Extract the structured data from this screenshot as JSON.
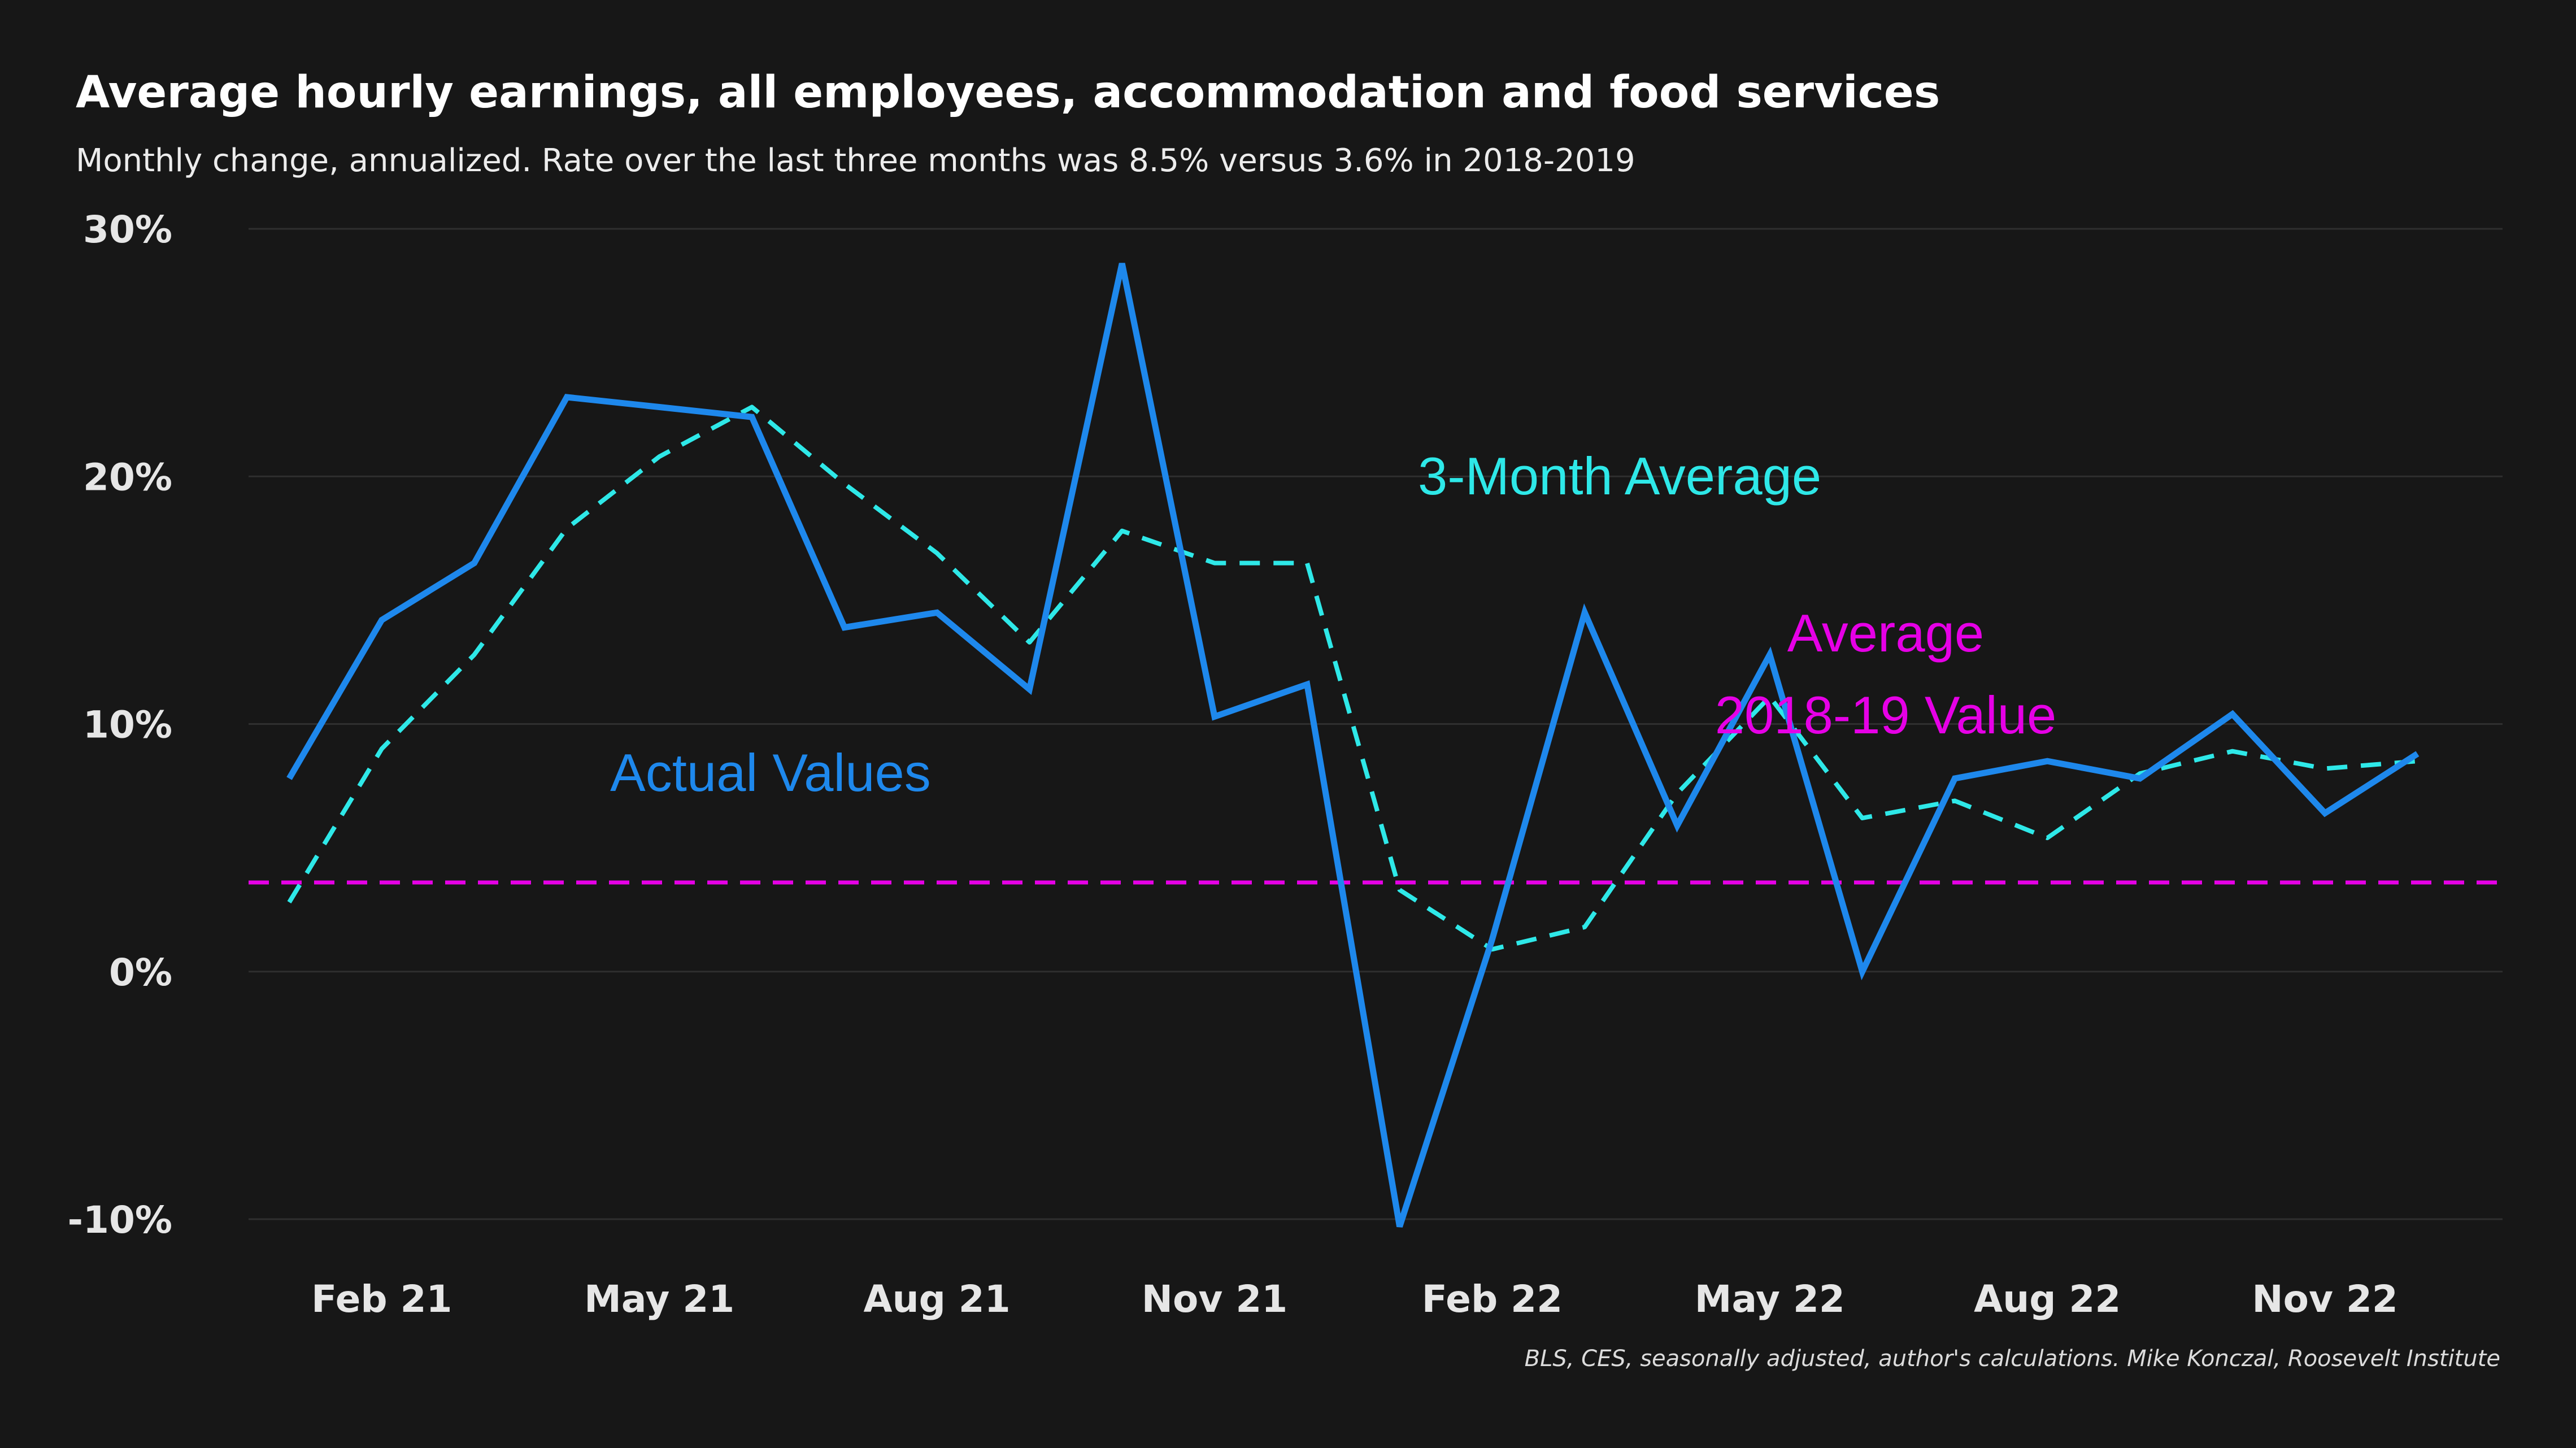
{
  "chart_data": {
    "type": "line",
    "title": "Average hourly earnings, all employees, accommodation and food services",
    "subtitle": "Monthly change, annualized. Rate over the last three months was 8.5% versus 3.6% in 2018-2019",
    "caption": "BLS, CES, seasonally adjusted, author's calculations. Mike Konczal, Roosevelt Institute",
    "x": [
      "Jan 21",
      "Feb 21",
      "Mar 21",
      "Apr 21",
      "May 21",
      "Jun 21",
      "Jul 21",
      "Aug 21",
      "Sep 21",
      "Oct 21",
      "Nov 21",
      "Dec 21",
      "Jan 22",
      "Feb 22",
      "Mar 22",
      "Apr 22",
      "May 22",
      "Jun 22",
      "Jul 22",
      "Aug 22",
      "Sep 22",
      "Oct 22",
      "Nov 22",
      "Dec 22"
    ],
    "xticks": [
      "Feb 21",
      "May 21",
      "Aug 21",
      "Nov 21",
      "Feb 22",
      "May 22",
      "Aug 22",
      "Nov 22"
    ],
    "ylim": [
      -10,
      30
    ],
    "yticks": [
      -10,
      0,
      10,
      20,
      30
    ],
    "yticklabels": [
      "-10%",
      "0%",
      "10%",
      "20%",
      "30%"
    ],
    "grid": true,
    "colors": {
      "actual": "#1e88ec",
      "average3": "#2ee8e8",
      "baseline": "#e600e6",
      "background": "#171717"
    },
    "series": [
      {
        "name": "Actual Values",
        "style": "solid",
        "values": [
          7.8,
          14.2,
          16.5,
          23.2,
          22.8,
          22.4,
          13.9,
          14.5,
          11.4,
          28.6,
          10.3,
          11.6,
          -10.3,
          1.3,
          14.5,
          5.9,
          12.8,
          0.0,
          7.8,
          8.5,
          7.8,
          10.4,
          6.4,
          8.8
        ]
      },
      {
        "name": "3-Month Average",
        "style": "dashed",
        "values": [
          2.8,
          9.0,
          12.8,
          17.9,
          20.8,
          22.8,
          19.7,
          16.9,
          13.3,
          17.8,
          16.5,
          16.5,
          3.3,
          0.9,
          1.8,
          7.2,
          11.1,
          6.2,
          6.9,
          5.4,
          8.0,
          8.9,
          8.2,
          8.5
        ]
      }
    ],
    "baseline": {
      "name": "Average 2018-19 Value",
      "value": 3.6,
      "style": "dashed"
    },
    "annotations": {
      "actual": "Actual Values",
      "average3": "3-Month Average",
      "baseline_line1": "Average",
      "baseline_line2": "2018-19 Value"
    }
  }
}
